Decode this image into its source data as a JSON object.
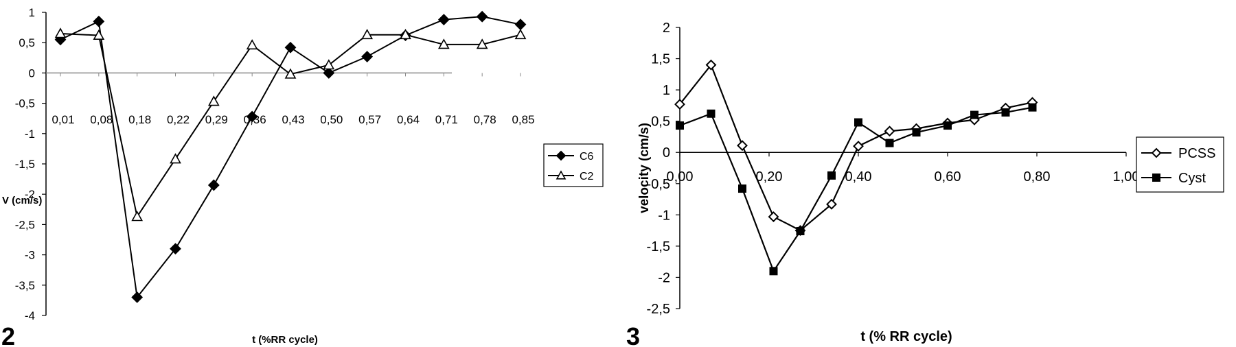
{
  "chart_data": [
    {
      "type": "line",
      "panel_label": "2",
      "xlabel": "t (%RR cycle)",
      "ylabel": "V (cm/s)",
      "categories": [
        "0,01",
        "0,08",
        "0,18",
        "0,22",
        "0,29",
        "0,36",
        "0,43",
        "0,50",
        "0,57",
        "0,64",
        "0,71",
        "0,78",
        "0,85"
      ],
      "ylim": [
        -4,
        1
      ],
      "yticks": [
        "1",
        "0,5",
        "0",
        "-0,5",
        "-1",
        "-1,5",
        "-2",
        "-2,5",
        "-3",
        "-3,5",
        "-4"
      ],
      "legend": "right",
      "series": [
        {
          "name": "C6",
          "marker": "diamond-filled",
          "values": [
            0.55,
            0.85,
            -3.7,
            -2.9,
            -1.85,
            -0.72,
            0.42,
            0.0,
            0.27,
            0.62,
            0.88,
            0.93,
            0.8
          ]
        },
        {
          "name": "C2",
          "marker": "triangle-open",
          "values": [
            0.65,
            0.62,
            -2.37,
            -1.42,
            -0.47,
            0.46,
            -0.02,
            0.13,
            0.63,
            0.63,
            0.47,
            0.47,
            0.63
          ]
        }
      ]
    },
    {
      "type": "line",
      "panel_label": "3",
      "xlabel": "t (% RR cycle)",
      "ylabel": "velocity (cm/s)",
      "xlim": [
        0,
        1
      ],
      "ylim": [
        -2.5,
        2
      ],
      "xticks": [
        "0,00",
        "0,20",
        "0,40",
        "0,60",
        "0,80",
        "1,00"
      ],
      "yticks": [
        "2",
        "1,5",
        "1",
        "0,5",
        "0",
        "-0,5",
        "-1",
        "-1,5",
        "-2",
        "-2,5"
      ],
      "legend": "right",
      "series": [
        {
          "name": "PCSS",
          "marker": "diamond-open",
          "x": [
            0.0,
            0.07,
            0.14,
            0.21,
            0.27,
            0.34,
            0.4,
            0.47,
            0.53,
            0.6,
            0.66,
            0.73,
            0.79
          ],
          "values": [
            0.77,
            1.4,
            0.11,
            -1.03,
            -1.25,
            -0.83,
            0.1,
            0.34,
            0.38,
            0.47,
            0.52,
            0.71,
            0.8
          ]
        },
        {
          "name": "Cyst",
          "marker": "square-filled",
          "x": [
            0.0,
            0.07,
            0.14,
            0.21,
            0.27,
            0.34,
            0.4,
            0.47,
            0.53,
            0.6,
            0.66,
            0.73,
            0.79
          ],
          "values": [
            0.43,
            0.62,
            -0.58,
            -1.9,
            -1.26,
            -0.37,
            0.48,
            0.15,
            0.32,
            0.43,
            0.6,
            0.64,
            0.72
          ]
        }
      ]
    }
  ]
}
